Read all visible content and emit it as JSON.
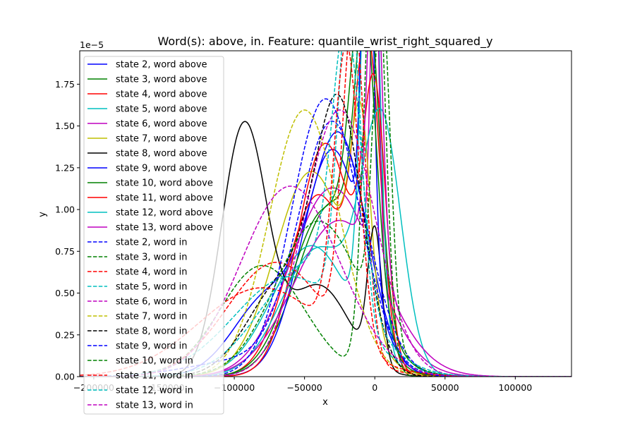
{
  "chart_data": {
    "type": "line",
    "title": "Word(s): above, in. Feature: quantile_wrist_right_squared_y",
    "xlabel": "x",
    "ylabel": "y",
    "y_scale_label": "1e−5",
    "xlim": [
      -210000,
      140000
    ],
    "ylim": [
      0,
      1.95e-05
    ],
    "xticks": [
      {
        "value": -200000,
        "label": "−200000"
      },
      {
        "value": -150000,
        "label": "−150000"
      },
      {
        "value": -100000,
        "label": "−100000"
      },
      {
        "value": -50000,
        "label": "−50000"
      },
      {
        "value": 0,
        "label": "0"
      },
      {
        "value": 50000,
        "label": "50000"
      },
      {
        "value": 100000,
        "label": "100000"
      }
    ],
    "yticks": [
      {
        "value": 0,
        "label": "0.00"
      },
      {
        "value": 2.5e-06,
        "label": "0.25"
      },
      {
        "value": 5e-06,
        "label": "0.50"
      },
      {
        "value": 7.5e-06,
        "label": "0.75"
      },
      {
        "value": 1e-05,
        "label": "1.00"
      },
      {
        "value": 1.25e-05,
        "label": "1.25"
      },
      {
        "value": 1.5e-05,
        "label": "1.50"
      },
      {
        "value": 1.75e-05,
        "label": "1.75"
      }
    ],
    "legend_position": "upper-left",
    "series": [
      {
        "name": "state 2, word above",
        "color": "#0000ff",
        "style": "solid",
        "components": [
          {
            "w": 0.7,
            "mu": -25000,
            "sigma": 20000
          },
          {
            "w": 0.3,
            "mu": -75000,
            "sigma": 25000
          }
        ]
      },
      {
        "name": "state 3, word above",
        "color": "#008000",
        "style": "solid",
        "components": [
          {
            "w": 0.65,
            "mu": -30000,
            "sigma": 25000
          },
          {
            "w": 0.35,
            "mu": -5000,
            "sigma": 8000
          }
        ]
      },
      {
        "name": "state 4, word above",
        "color": "#ff0000",
        "style": "solid",
        "components": [
          {
            "w": 0.6,
            "mu": -40000,
            "sigma": 22000
          },
          {
            "w": 0.4,
            "mu": -5000,
            "sigma": 9000
          }
        ]
      },
      {
        "name": "state 5, word above",
        "color": "#00bfbf",
        "style": "solid",
        "components": [
          {
            "w": 0.55,
            "mu": -45000,
            "sigma": 28000
          },
          {
            "w": 0.45,
            "mu": -3000,
            "sigma": 6000
          }
        ]
      },
      {
        "name": "state 6, word above",
        "color": "#bf00bf",
        "style": "solid",
        "components": [
          {
            "w": 0.85,
            "mu": -30000,
            "sigma": 30000
          },
          {
            "w": 0.15,
            "mu": 0,
            "sigma": 3000
          }
        ]
      },
      {
        "name": "state 7, word above",
        "color": "#bfbf00",
        "style": "solid",
        "components": [
          {
            "w": 0.8,
            "mu": -45000,
            "sigma": 26000
          },
          {
            "w": 0.2,
            "mu": -10000,
            "sigma": 7000
          }
        ]
      },
      {
        "name": "state 8, word above",
        "color": "#000000",
        "style": "solid",
        "components": [
          {
            "w": 0.6,
            "mu": -93000,
            "sigma": 16000
          },
          {
            "w": 0.3,
            "mu": -40000,
            "sigma": 22000
          },
          {
            "w": 0.1,
            "mu": 0,
            "sigma": 5000
          }
        ]
      },
      {
        "name": "state 9, word above",
        "color": "#0000ff",
        "style": "solid",
        "components": [
          {
            "w": 0.75,
            "mu": -30000,
            "sigma": 22000
          },
          {
            "w": 0.25,
            "mu": -5000,
            "sigma": 4000
          }
        ]
      },
      {
        "name": "state 10, word above",
        "color": "#008000",
        "style": "solid",
        "components": [
          {
            "w": 0.6,
            "mu": -35000,
            "sigma": 24000
          },
          {
            "w": 0.4,
            "mu": -8000,
            "sigma": 9000
          }
        ]
      },
      {
        "name": "state 11, word above",
        "color": "#ff0000",
        "style": "solid",
        "components": [
          {
            "w": 0.7,
            "mu": -35000,
            "sigma": 20000
          },
          {
            "w": 0.3,
            "mu": 0,
            "sigma": 8000
          }
        ]
      },
      {
        "name": "state 12, word above",
        "color": "#00bfbf",
        "style": "solid",
        "components": [
          {
            "w": 0.5,
            "mu": -40000,
            "sigma": 26000
          },
          {
            "w": 0.5,
            "mu": 5000,
            "sigma": 14000
          }
        ]
      },
      {
        "name": "state 13, word above",
        "color": "#bf00bf",
        "style": "solid",
        "components": [
          {
            "w": 0.75,
            "mu": -25000,
            "sigma": 32000
          },
          {
            "w": 0.25,
            "mu": 0,
            "sigma": 5000
          }
        ]
      },
      {
        "name": "state 2, word in",
        "color": "#0000ff",
        "style": "dashed",
        "components": [
          {
            "w": 0.9,
            "mu": -30000,
            "sigma": 24000
          },
          {
            "w": 0.1,
            "mu": -90000,
            "sigma": 40000
          }
        ]
      },
      {
        "name": "state 3, word in",
        "color": "#008000",
        "style": "dashed",
        "components": [
          {
            "w": 0.5,
            "mu": -80000,
            "sigma": 30000
          },
          {
            "w": 0.5,
            "mu": 0,
            "sigma": 7000
          }
        ]
      },
      {
        "name": "state 4, word in",
        "color": "#ff0000",
        "style": "dashed",
        "components": [
          {
            "w": 0.6,
            "mu": -70000,
            "sigma": 35000
          },
          {
            "w": 0.4,
            "mu": -15000,
            "sigma": 8000
          }
        ]
      },
      {
        "name": "state 5, word in",
        "color": "#00bfbf",
        "style": "dashed",
        "components": [
          {
            "w": 0.6,
            "mu": -60000,
            "sigma": 40000
          },
          {
            "w": 0.4,
            "mu": -18000,
            "sigma": 8000
          }
        ]
      },
      {
        "name": "state 6, word in",
        "color": "#bf00bf",
        "style": "dashed",
        "components": [
          {
            "w": 1.0,
            "mu": -25000,
            "sigma": 25000
          }
        ]
      },
      {
        "name": "state 7, word in",
        "color": "#bfbf00",
        "style": "dashed",
        "components": [
          {
            "w": 1.0,
            "mu": -50000,
            "sigma": 25000
          }
        ]
      },
      {
        "name": "state 8, word in",
        "color": "#000000",
        "style": "dashed",
        "components": [
          {
            "w": 0.65,
            "mu": -25000,
            "sigma": 17000
          },
          {
            "w": 0.35,
            "mu": -65000,
            "sigma": 25000
          }
        ]
      },
      {
        "name": "state 9, word in",
        "color": "#0000ff",
        "style": "dashed",
        "components": [
          {
            "w": 1.0,
            "mu": -35000,
            "sigma": 24000
          }
        ]
      },
      {
        "name": "state 10, word in",
        "color": "#008000",
        "style": "dashed",
        "components": [
          {
            "w": 0.7,
            "mu": -40000,
            "sigma": 30000
          },
          {
            "w": 0.3,
            "mu": 5000,
            "sigma": 6000
          }
        ]
      },
      {
        "name": "state 11, word in",
        "color": "#ff0000",
        "style": "dashed",
        "components": [
          {
            "w": 0.6,
            "mu": -80000,
            "sigma": 45000
          },
          {
            "w": 0.4,
            "mu": -20000,
            "sigma": 9000
          }
        ]
      },
      {
        "name": "state 12, word in",
        "color": "#00bfbf",
        "style": "dashed",
        "components": [
          {
            "w": 0.6,
            "mu": -45000,
            "sigma": 35000
          },
          {
            "w": 0.4,
            "mu": -20000,
            "sigma": 10000
          }
        ]
      },
      {
        "name": "state 13, word in",
        "color": "#bf00bf",
        "style": "dashed",
        "components": [
          {
            "w": 1.0,
            "mu": -60000,
            "sigma": 35000
          }
        ]
      }
    ]
  }
}
